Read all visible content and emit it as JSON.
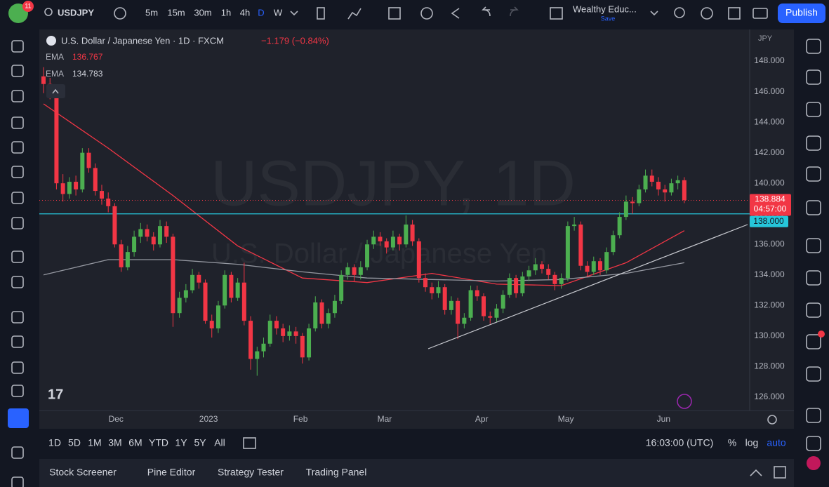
{
  "toolbar": {
    "badge": "11",
    "symbol": "USDJPY",
    "intervals": [
      "5m",
      "15m",
      "30m",
      "1h",
      "4h",
      "D",
      "W"
    ],
    "layout_name": "Wealthy Educ...",
    "save": "Save",
    "publish": "Publish"
  },
  "legend": {
    "title": "U.S. Dollar / Japanese Yen · 1D · FXCM",
    "change": "−1.179 (−0.84%)"
  },
  "watermark": {
    "symbol": "USDJPY, 1D",
    "name": "U.S. Dollar / Japanese Yen"
  },
  "chart_data": {
    "type": "candlestick",
    "currency": "JPY",
    "up_color": "#4caf50",
    "down_color": "#f23645",
    "ylim": [
      125.17,
      150.07
    ],
    "yticks": [
      {
        "value": 126,
        "label": "126.000"
      },
      {
        "value": 128,
        "label": "128.000"
      },
      {
        "value": 130,
        "label": "130.000"
      },
      {
        "value": 132,
        "label": "132.000"
      },
      {
        "value": 134,
        "label": "134.000"
      },
      {
        "value": 136,
        "label": "136.000"
      },
      {
        "value": 138,
        "label": "138.000"
      },
      {
        "value": 140,
        "label": "140.000"
      },
      {
        "value": 142,
        "label": "142.000"
      },
      {
        "value": 144,
        "label": "144.000"
      },
      {
        "value": 146,
        "label": "146.000"
      },
      {
        "value": 148,
        "label": "148.000"
      }
    ],
    "xlim": [
      -0.65,
      109.1
    ],
    "xticks": [
      {
        "value": 11.2,
        "label": "Dec"
      },
      {
        "value": 25.5,
        "label": "2023"
      },
      {
        "value": 39.7,
        "label": "Feb"
      },
      {
        "value": 52.7,
        "label": "Mar"
      },
      {
        "value": 67.7,
        "label": "Apr"
      },
      {
        "value": 80.7,
        "label": "May"
      },
      {
        "value": 95.8,
        "label": "Jun"
      }
    ],
    "grid": false,
    "ohlc": [
      [
        147.0,
        147.6,
        145.9,
        146.5
      ],
      [
        146.5,
        146.9,
        145.5,
        146.0
      ],
      [
        146.0,
        146.3,
        139.6,
        140.0
      ],
      [
        140.0,
        140.6,
        138.8,
        139.3
      ],
      [
        139.3,
        140.4,
        139.0,
        140.1
      ],
      [
        140.1,
        140.5,
        139.2,
        139.6
      ],
      [
        139.6,
        142.3,
        139.4,
        142.0
      ],
      [
        142.0,
        142.3,
        140.7,
        141.0
      ],
      [
        141.0,
        141.3,
        139.2,
        139.5
      ],
      [
        139.5,
        139.9,
        138.6,
        139.0
      ],
      [
        139.0,
        139.4,
        138.1,
        138.5
      ],
      [
        138.5,
        138.7,
        135.8,
        136.0
      ],
      [
        136.0,
        136.3,
        134.2,
        134.5
      ],
      [
        134.5,
        135.9,
        134.3,
        135.5
      ],
      [
        135.5,
        136.9,
        135.2,
        136.5
      ],
      [
        136.5,
        137.4,
        136.1,
        137.0
      ],
      [
        137.0,
        137.3,
        136.2,
        136.5
      ],
      [
        136.5,
        136.8,
        135.6,
        136.0
      ],
      [
        136.0,
        137.6,
        135.8,
        137.2
      ],
      [
        137.2,
        137.5,
        136.1,
        136.5
      ],
      [
        136.5,
        136.7,
        130.6,
        131.5
      ],
      [
        131.5,
        132.9,
        131.2,
        132.5
      ],
      [
        132.5,
        133.4,
        132.2,
        133.0
      ],
      [
        133.0,
        134.4,
        132.8,
        134.0
      ],
      [
        134.0,
        134.2,
        133.1,
        133.5
      ],
      [
        133.5,
        133.7,
        130.8,
        131.0
      ],
      [
        131.0,
        131.4,
        129.9,
        130.5
      ],
      [
        130.5,
        132.3,
        130.2,
        132.0
      ],
      [
        132.0,
        134.3,
        131.8,
        134.0
      ],
      [
        134.0,
        134.2,
        132.2,
        132.5
      ],
      [
        132.5,
        133.8,
        132.3,
        133.5
      ],
      [
        133.5,
        134.8,
        130.7,
        131.0
      ],
      [
        131.0,
        131.3,
        127.8,
        128.5
      ],
      [
        128.5,
        129.3,
        127.4,
        129.0
      ],
      [
        129.0,
        129.9,
        128.6,
        129.5
      ],
      [
        129.5,
        131.4,
        129.3,
        131.0
      ],
      [
        131.0,
        131.3,
        130.1,
        130.5
      ],
      [
        130.5,
        130.8,
        129.6,
        130.0
      ],
      [
        130.0,
        130.7,
        129.7,
        130.3
      ],
      [
        130.3,
        130.6,
        129.5,
        130.0
      ],
      [
        130.0,
        130.2,
        128.2,
        128.6
      ],
      [
        128.6,
        130.8,
        128.4,
        130.5
      ],
      [
        130.5,
        132.6,
        130.3,
        132.2
      ],
      [
        132.2,
        132.4,
        130.5,
        130.8
      ],
      [
        130.8,
        131.8,
        130.5,
        131.5
      ],
      [
        131.5,
        132.7,
        131.2,
        132.3
      ],
      [
        132.3,
        134.3,
        132.1,
        134.0
      ],
      [
        134.0,
        134.8,
        133.7,
        134.5
      ],
      [
        134.5,
        134.7,
        133.6,
        134.0
      ],
      [
        134.0,
        134.9,
        133.7,
        134.5
      ],
      [
        134.5,
        136.3,
        134.3,
        136.0
      ],
      [
        136.0,
        136.9,
        135.7,
        136.5
      ],
      [
        136.5,
        136.8,
        135.9,
        136.2
      ],
      [
        136.2,
        136.4,
        135.4,
        135.8
      ],
      [
        135.8,
        136.9,
        135.6,
        136.5
      ],
      [
        136.5,
        136.7,
        135.6,
        136.0
      ],
      [
        136.0,
        137.9,
        135.8,
        137.3
      ],
      [
        137.3,
        137.6,
        135.9,
        136.2
      ],
      [
        136.2,
        136.4,
        133.5,
        133.8
      ],
      [
        133.8,
        134.1,
        132.9,
        133.2
      ],
      [
        133.2,
        133.5,
        132.4,
        132.8
      ],
      [
        132.8,
        133.6,
        132.5,
        133.2
      ],
      [
        133.2,
        133.4,
        131.4,
        131.7
      ],
      [
        131.7,
        132.6,
        131.4,
        132.3
      ],
      [
        132.3,
        132.5,
        129.8,
        130.8
      ],
      [
        130.8,
        131.5,
        130.5,
        131.2
      ],
      [
        131.2,
        133.3,
        131.0,
        133.0
      ],
      [
        133.0,
        133.3,
        132.3,
        132.6
      ],
      [
        132.6,
        132.8,
        131.0,
        131.3
      ],
      [
        131.3,
        131.6,
        130.8,
        131.2
      ],
      [
        131.2,
        132.1,
        130.9,
        131.8
      ],
      [
        131.8,
        133.0,
        131.5,
        132.7
      ],
      [
        132.7,
        134.1,
        132.5,
        133.8
      ],
      [
        133.8,
        134.0,
        132.5,
        132.8
      ],
      [
        132.8,
        134.2,
        132.6,
        133.9
      ],
      [
        133.9,
        134.6,
        133.6,
        134.3
      ],
      [
        134.3,
        135.1,
        134.0,
        134.7
      ],
      [
        134.7,
        134.9,
        134.1,
        134.4
      ],
      [
        134.4,
        134.7,
        133.7,
        134.0
      ],
      [
        134.0,
        134.2,
        133.0,
        133.4
      ],
      [
        133.4,
        134.1,
        133.1,
        133.8
      ],
      [
        133.8,
        137.5,
        133.6,
        137.2
      ],
      [
        137.2,
        137.8,
        136.9,
        137.3
      ],
      [
        137.3,
        137.5,
        134.3,
        134.6
      ],
      [
        134.6,
        134.9,
        133.9,
        134.2
      ],
      [
        134.2,
        135.2,
        134.0,
        134.9
      ],
      [
        134.9,
        135.1,
        134.0,
        134.3
      ],
      [
        134.3,
        135.8,
        134.1,
        135.5
      ],
      [
        135.5,
        136.9,
        135.3,
        136.6
      ],
      [
        136.6,
        138.1,
        136.4,
        137.8
      ],
      [
        137.8,
        139.2,
        137.6,
        138.8
      ],
      [
        138.8,
        139.1,
        138.0,
        138.7
      ],
      [
        138.7,
        139.9,
        138.5,
        139.6
      ],
      [
        139.6,
        140.9,
        139.4,
        140.5
      ],
      [
        140.5,
        140.9,
        139.8,
        140.1
      ],
      [
        140.1,
        140.4,
        139.2,
        139.6
      ],
      [
        139.6,
        139.9,
        138.8,
        139.4
      ],
      [
        139.4,
        140.3,
        139.2,
        140.0
      ],
      [
        140.0,
        140.5,
        139.6,
        140.2
      ],
      [
        140.2,
        140.4,
        138.7,
        138.9
      ]
    ],
    "series": [
      {
        "name": "EMA",
        "legend_value": 136.767,
        "color": "#f23645",
        "x": [
          0,
          10,
          20,
          30,
          40,
          50,
          60,
          70,
          80,
          90,
          99
        ],
        "values": [
          145.2,
          142.3,
          139.2,
          135.9,
          133.8,
          133.5,
          134.1,
          133.4,
          133.3,
          134.8,
          136.9
        ]
      },
      {
        "name": "EMA",
        "legend_value": 134.783,
        "color": "#9598a1",
        "x": [
          0,
          10,
          20,
          30,
          40,
          50,
          60,
          70,
          80,
          90,
          99
        ],
        "values": [
          134.0,
          135.0,
          135.0,
          134.7,
          134.2,
          133.8,
          133.7,
          133.6,
          133.7,
          134.1,
          134.8
        ]
      }
    ],
    "price_line": {
      "value": 138.884,
      "countdown": "04:57:00",
      "color": "#f23645"
    },
    "hline": {
      "value": 138,
      "label": "138.000",
      "color": "#26c6da"
    }
  },
  "range_bar": {
    "ranges": [
      "1D",
      "5D",
      "1M",
      "3M",
      "6M",
      "YTD",
      "1Y",
      "5Y",
      "All"
    ],
    "clock": "16:03:00 (UTC)",
    "percent": "%",
    "log": "log",
    "auto": "auto"
  },
  "footer": {
    "tabs": [
      "Stock Screener",
      "Pine Editor",
      "Strategy Tester",
      "Trading Panel"
    ]
  }
}
